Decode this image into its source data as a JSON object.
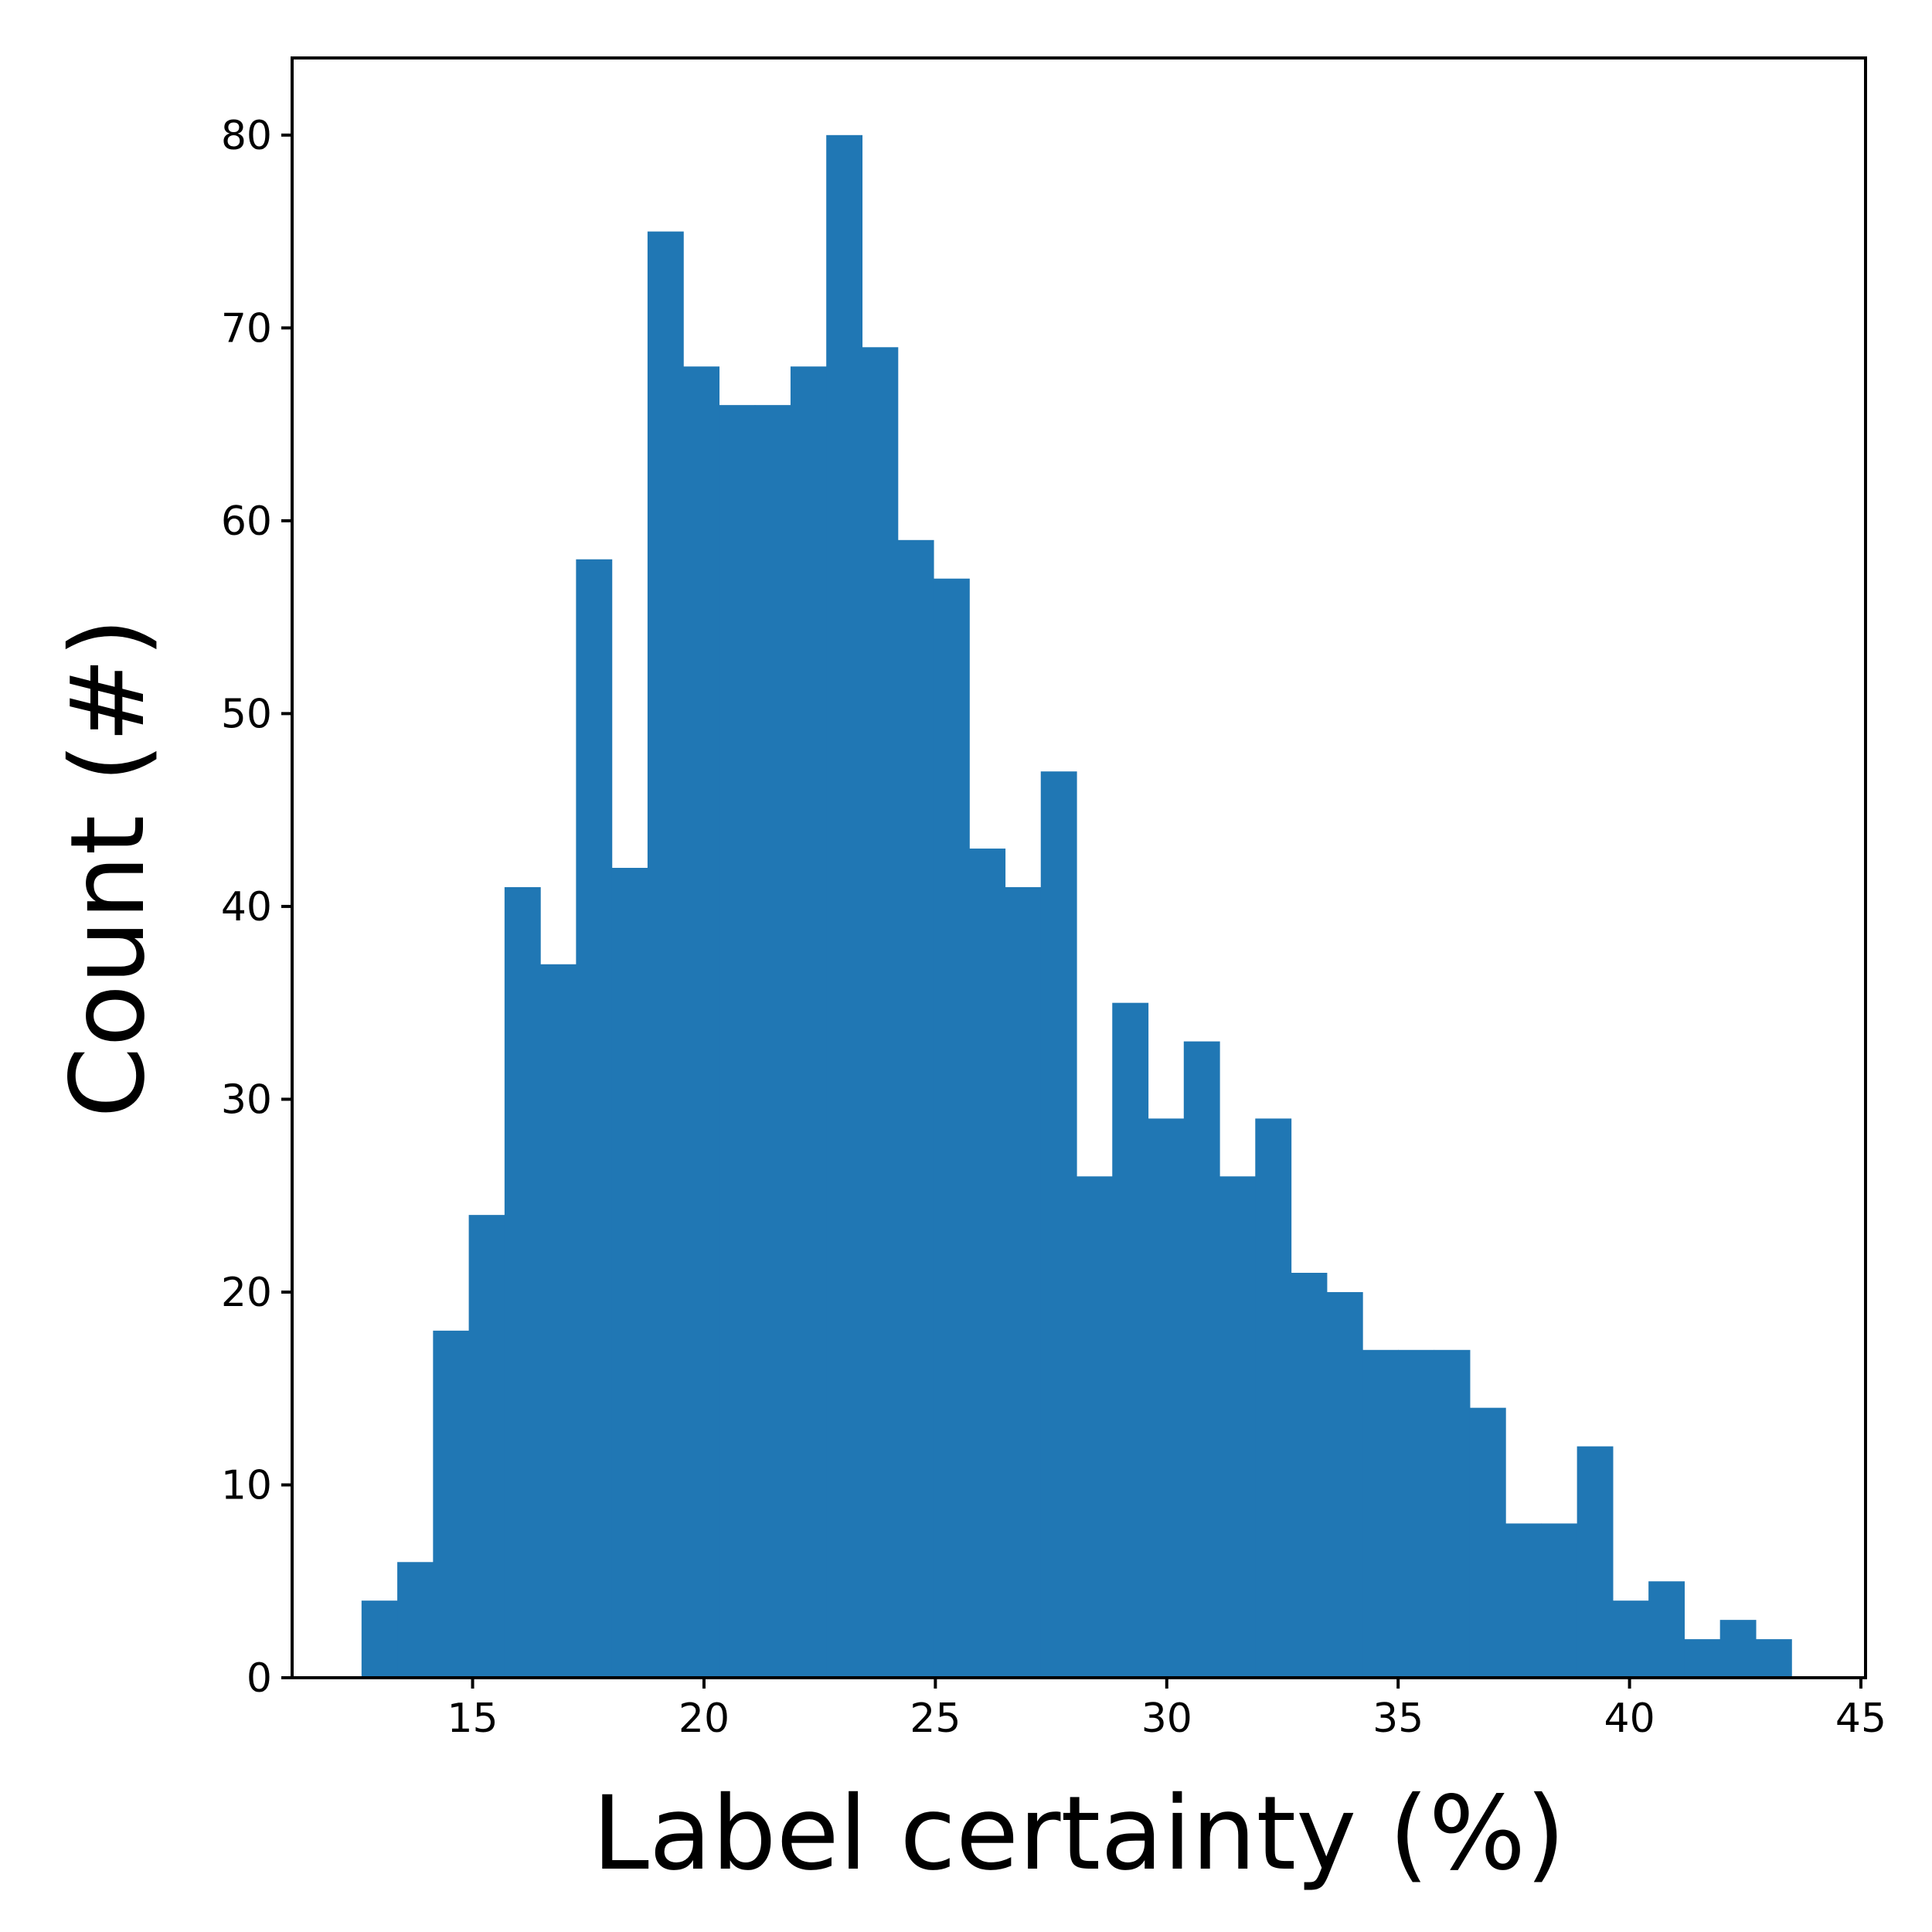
{
  "chart_data": {
    "type": "bar",
    "title": "",
    "xlabel": "Label certainty (%)",
    "ylabel": "Count (#)",
    "bin_start": 12.6,
    "bin_width": 0.7725,
    "values": [
      4,
      6,
      18,
      24,
      41,
      37,
      58,
      42,
      75,
      68,
      66,
      66,
      68,
      80,
      69,
      59,
      57,
      43,
      41,
      47,
      26,
      35,
      29,
      33,
      26,
      29,
      21,
      20,
      17,
      17,
      17,
      14,
      8,
      8,
      12,
      4,
      5,
      2,
      3,
      2
    ],
    "xlim": [
      11.1,
      45.1
    ],
    "ylim": [
      0,
      84
    ],
    "xticks": [
      "15",
      "20",
      "25",
      "30",
      "35",
      "40",
      "45"
    ],
    "yticks": [
      "0",
      "10",
      "20",
      "30",
      "40",
      "50",
      "60",
      "70",
      "80"
    ],
    "bar_color": "#2077b4",
    "grid": false,
    "legend": "none"
  }
}
